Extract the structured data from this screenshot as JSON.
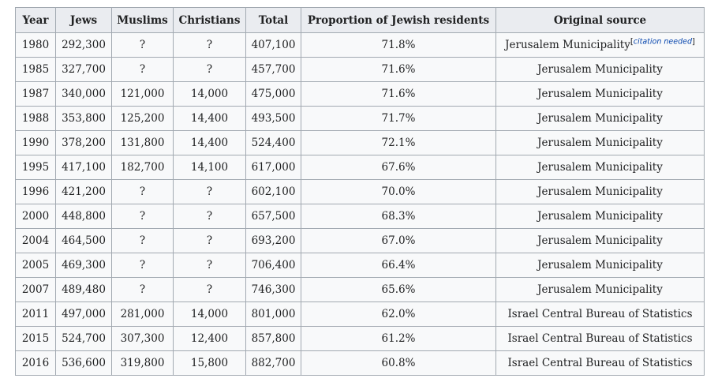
{
  "table": {
    "headers": [
      "Year",
      "Jews",
      "Muslims",
      "Christians",
      "Total",
      "Proportion of Jewish residents",
      "Original source"
    ],
    "citation_needed": {
      "open_bracket": "[",
      "link_text": "citation needed",
      "close_bracket": "]"
    },
    "rows": [
      {
        "year": "1980",
        "jews": "292,300",
        "muslims": "?",
        "christians": "?",
        "total": "407,100",
        "proportion": "71.8%",
        "source": "Jerusalem Municipality",
        "citation_needed": true
      },
      {
        "year": "1985",
        "jews": "327,700",
        "muslims": "?",
        "christians": "?",
        "total": "457,700",
        "proportion": "71.6%",
        "source": "Jerusalem Municipality"
      },
      {
        "year": "1987",
        "jews": "340,000",
        "muslims": "121,000",
        "christians": "14,000",
        "total": "475,000",
        "proportion": "71.6%",
        "source": "Jerusalem Municipality"
      },
      {
        "year": "1988",
        "jews": "353,800",
        "muslims": "125,200",
        "christians": "14,400",
        "total": "493,500",
        "proportion": "71.7%",
        "source": "Jerusalem Municipality"
      },
      {
        "year": "1990",
        "jews": "378,200",
        "muslims": "131,800",
        "christians": "14,400",
        "total": "524,400",
        "proportion": "72.1%",
        "source": "Jerusalem Municipality"
      },
      {
        "year": "1995",
        "jews": "417,100",
        "muslims": "182,700",
        "christians": "14,100",
        "total": "617,000",
        "proportion": "67.6%",
        "source": "Jerusalem Municipality"
      },
      {
        "year": "1996",
        "jews": "421,200",
        "muslims": "?",
        "christians": "?",
        "total": "602,100",
        "proportion": "70.0%",
        "source": "Jerusalem Municipality"
      },
      {
        "year": "2000",
        "jews": "448,800",
        "muslims": "?",
        "christians": "?",
        "total": "657,500",
        "proportion": "68.3%",
        "source": "Jerusalem Municipality"
      },
      {
        "year": "2004",
        "jews": "464,500",
        "muslims": "?",
        "christians": "?",
        "total": "693,200",
        "proportion": "67.0%",
        "source": "Jerusalem Municipality"
      },
      {
        "year": "2005",
        "jews": "469,300",
        "muslims": "?",
        "christians": "?",
        "total": "706,400",
        "proportion": "66.4%",
        "source": "Jerusalem Municipality"
      },
      {
        "year": "2007",
        "jews": "489,480",
        "muslims": "?",
        "christians": "?",
        "total": "746,300",
        "proportion": "65.6%",
        "source": "Jerusalem Municipality"
      },
      {
        "year": "2011",
        "jews": "497,000",
        "muslims": "281,000",
        "christians": "14,000",
        "total": "801,000",
        "proportion": "62.0%",
        "source": "Israel Central Bureau of Statistics"
      },
      {
        "year": "2015",
        "jews": "524,700",
        "muslims": "307,300",
        "christians": "12,400",
        "total": "857,800",
        "proportion": "61.2%",
        "source": "Israel Central Bureau of Statistics"
      },
      {
        "year": "2016",
        "jews": "536,600",
        "muslims": "319,800",
        "christians": "15,800",
        "total": "882,700",
        "proportion": "60.8%",
        "source": "Israel Central Bureau of Statistics"
      }
    ]
  }
}
